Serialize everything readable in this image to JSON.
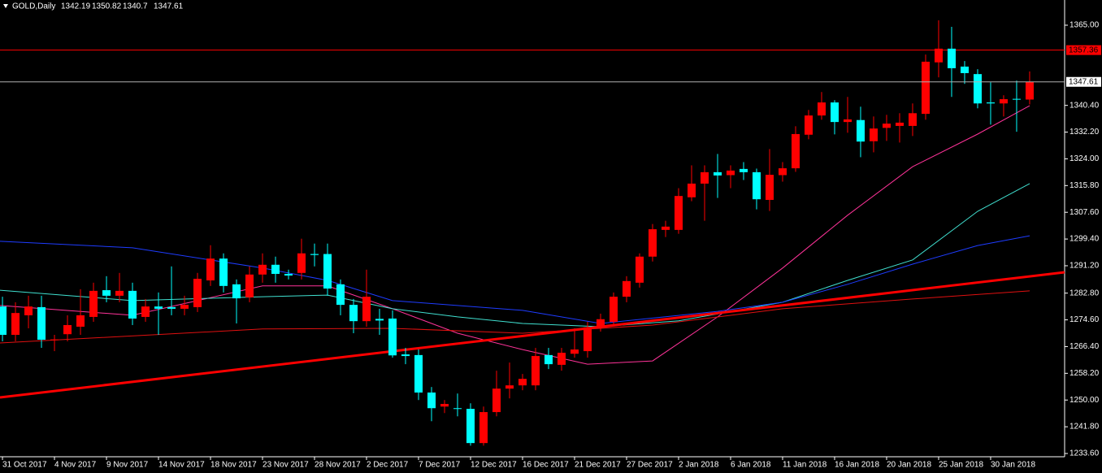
{
  "chart_data": {
    "type": "candlestick",
    "title": "GOLD,Daily",
    "up_color": "#ff0000",
    "down_color": "#00ffff",
    "xlim": [
      -0.19,
      81.69
    ],
    "ylim": [
      1232.6,
      1372.73
    ],
    "xticks": [
      {
        "value": 0,
        "label": "31 Oct 2017"
      },
      {
        "value": 4,
        "label": "4 Nov 2017"
      },
      {
        "value": 8,
        "label": "9 Nov 2017"
      },
      {
        "value": 12,
        "label": "14 Nov 2017"
      },
      {
        "value": 16,
        "label": "18 Nov 2017"
      },
      {
        "value": 20,
        "label": "23 Nov 2017"
      },
      {
        "value": 24,
        "label": "28 Nov 2017"
      },
      {
        "value": 28,
        "label": "2 Dec 2017"
      },
      {
        "value": 32,
        "label": "7 Dec 2017"
      },
      {
        "value": 36,
        "label": "12 Dec 2017"
      },
      {
        "value": 40,
        "label": "16 Dec 2017"
      },
      {
        "value": 44,
        "label": "21 Dec 2017"
      },
      {
        "value": 48,
        "label": "27 Dec 2017"
      },
      {
        "value": 52,
        "label": "2 Jan 2018"
      },
      {
        "value": 56,
        "label": "6 Jan 2018"
      },
      {
        "value": 60,
        "label": "11 Jan 2018"
      },
      {
        "value": 64,
        "label": "16 Jan 2018"
      },
      {
        "value": 68,
        "label": "20 Jan 2018"
      },
      {
        "value": 72,
        "label": "25 Jan 2018"
      },
      {
        "value": 76,
        "label": "30 Jan 2018"
      }
    ],
    "yticks": [
      {
        "value": 1365,
        "label": "1365.00"
      },
      {
        "value": 1340.4,
        "label": "1340.40"
      },
      {
        "value": 1332.2,
        "label": "1332.20"
      },
      {
        "value": 1324,
        "label": "1324.00"
      },
      {
        "value": 1315.8,
        "label": "1315.80"
      },
      {
        "value": 1307.6,
        "label": "1307.60"
      },
      {
        "value": 1299.4,
        "label": "1299.40"
      },
      {
        "value": 1291.2,
        "label": "1291.20"
      },
      {
        "value": 1282.8,
        "label": "1282.80"
      },
      {
        "value": 1274.6,
        "label": "1274.60"
      },
      {
        "value": 1266.4,
        "label": "1266.40"
      },
      {
        "value": 1258.2,
        "label": "1258.20"
      },
      {
        "value": 1250,
        "label": "1250.00"
      },
      {
        "value": 1241.8,
        "label": "1241.80"
      },
      {
        "value": 1233.6,
        "label": "1233.60"
      }
    ],
    "open": [
      1278.7,
      1270,
      1276,
      1278.5,
      1268.4,
      1270.2,
      1272.5,
      1275.5,
      1283.7,
      1282,
      1283.5,
      1275.5,
      1278.7,
      1278.5,
      1278,
      1278.5,
      1286.7,
      1293.4,
      1285.5,
      1281.5,
      1288.5,
      1291.5,
      1288.7,
      1289,
      1294.8,
      1294.8,
      1285.5,
      1279.2,
      1274.2,
      1274.9,
      1275,
      1264,
      1263.8,
      1252.3,
      1248,
      1247.5,
      1247.3,
      1236.8,
      1246.3,
      1253.5,
      1254.5,
      1254.5,
      1263.8,
      1260.8,
      1264.2,
      1265,
      1272.3,
      1274,
      1281.7,
      1286,
      1294,
      1302.2,
      1302.2,
      1312.2,
      1316.4,
      1319.9,
      1319,
      1320.9,
      1319.9,
      1311.4,
      1319,
      1321.1,
      1331.4,
      1337.3,
      1341.3,
      1335.3,
      1335.9,
      1329.4,
      1333.5,
      1334.1,
      1334.1,
      1337.8,
      1353.6,
      1357.8,
      1352.3,
      1350,
      1341.3,
      1341,
      1342.4,
      1342.19
    ],
    "high": [
      1281.7,
      1280,
      1282,
      1282,
      1270,
      1276,
      1284,
      1286,
      1288,
      1289,
      1286,
      1281,
      1283,
      1291,
      1282,
      1289,
      1297.5,
      1295,
      1287,
      1291,
      1295,
      1294,
      1290,
      1299.5,
      1298,
      1298,
      1287,
      1281,
      1290,
      1278,
      1277.5,
      1266,
      1265.5,
      1254,
      1250,
      1252,
      1249,
      1248,
      1259,
      1261.5,
      1258,
      1266,
      1266,
      1266,
      1272,
      1274,
      1276.5,
      1283,
      1288,
      1295,
      1304,
      1305,
      1315,
      1322,
      1322,
      1325.5,
      1322,
      1323,
      1321,
      1327,
      1323,
      1334,
      1339,
      1344.5,
      1342,
      1343,
      1340,
      1337,
      1337.5,
      1338,
      1341,
      1356,
      1366.5,
      1364.5,
      1354,
      1351.5,
      1347.5,
      1343.5,
      1348,
      1350.82
    ],
    "low": [
      1268,
      1268,
      1272,
      1266,
      1265,
      1268,
      1270,
      1274,
      1280,
      1280,
      1273,
      1274,
      1270,
      1276,
      1276,
      1277,
      1285,
      1283,
      1273.5,
      1280,
      1286,
      1286,
      1287,
      1287,
      1291,
      1282,
      1276,
      1270.5,
      1272.5,
      1270,
      1263,
      1261,
      1250,
      1243.5,
      1246,
      1245,
      1236,
      1236,
      1245,
      1250.5,
      1253,
      1253,
      1259.5,
      1259,
      1263,
      1263,
      1271,
      1273,
      1280,
      1284.5,
      1292.5,
      1300,
      1301,
      1311,
      1305,
      1312,
      1315,
      1317.5,
      1308.5,
      1308,
      1317,
      1320,
      1330,
      1336,
      1331.5,
      1332,
      1324.5,
      1326,
      1329.5,
      1329,
      1331,
      1336,
      1349,
      1343,
      1347,
      1339.5,
      1334.5,
      1337,
      1332.3,
      1340.7
    ],
    "close": [
      1270,
      1276.7,
      1278.7,
      1268.5,
      1268.6,
      1273,
      1276,
      1283.5,
      1282,
      1283.5,
      1275,
      1278.7,
      1278,
      1278,
      1279.2,
      1287.2,
      1293.4,
      1285,
      1281.2,
      1288.5,
      1291.5,
      1288.7,
      1288.2,
      1295,
      1294.5,
      1284.2,
      1279.2,
      1274.2,
      1281.7,
      1274.4,
      1263.7,
      1263.5,
      1252.3,
      1247.5,
      1248.8,
      1247.3,
      1236.8,
      1246.3,
      1253.5,
      1254.5,
      1256.5,
      1263.5,
      1261,
      1264.5,
      1265.5,
      1272.3,
      1274.8,
      1281.7,
      1286.5,
      1294,
      1302.4,
      1303.2,
      1312.6,
      1316.4,
      1319.9,
      1318.9,
      1320.4,
      1319.9,
      1311.6,
      1319.1,
      1321.1,
      1331.6,
      1337.3,
      1341.3,
      1335.3,
      1336.1,
      1329.3,
      1333.3,
      1334.8,
      1335.1,
      1338,
      1353.8,
      1357.8,
      1351.8,
      1350.3,
      1341,
      1341,
      1342.3,
      1342.2,
      1347.61
    ],
    "lines": [
      {
        "color": "#ff3399",
        "x": [
          -0.19,
          10,
          15,
          20,
          25,
          30,
          35,
          40,
          45,
          50,
          55,
          60,
          65,
          70,
          75,
          79
        ],
        "values": [
          1279,
          1276,
          1280.5,
          1285,
          1285,
          1278,
          1270.5,
          1265.5,
          1261,
          1262,
          1275.5,
          1290.5,
          1306.7,
          1321.6,
          1331.6,
          1340.3
        ]
      },
      {
        "color": "#40e0d0",
        "x": [
          -0.19,
          10,
          20,
          25,
          30,
          35,
          40,
          46,
          52,
          60,
          65,
          70,
          75,
          79
        ],
        "values": [
          1283.7,
          1280.5,
          1281.7,
          1282.2,
          1278,
          1275.5,
          1273.5,
          1272.5,
          1274.3,
          1280,
          1286.7,
          1293,
          1307.9,
          1316.4
        ]
      },
      {
        "color": "#1e3cff",
        "x": [
          -0.19,
          10,
          20,
          25,
          30,
          40,
          46,
          55,
          60,
          65,
          70,
          75,
          79
        ],
        "values": [
          1298.7,
          1296.7,
          1290.5,
          1286.7,
          1280.5,
          1277.5,
          1273.5,
          1277.2,
          1280,
          1285.5,
          1291.7,
          1297.4,
          1300.4
        ]
      },
      {
        "color": "#e01010",
        "x": [
          -0.19,
          20,
          30,
          40,
          50,
          60,
          70,
          79
        ],
        "values": [
          1267.5,
          1271.8,
          1272,
          1270.5,
          1273,
          1278,
          1281,
          1283.5
        ]
      },
      {
        "color": "#ff0000",
        "width": 3,
        "x": [
          -0.19,
          81.69
        ],
        "values": [
          1250.8,
          1289.2
        ]
      }
    ],
    "level_line": {
      "value": 1357.36,
      "color": "#ff0000"
    },
    "bid_line_color": "#b0b0b0"
  }
}
